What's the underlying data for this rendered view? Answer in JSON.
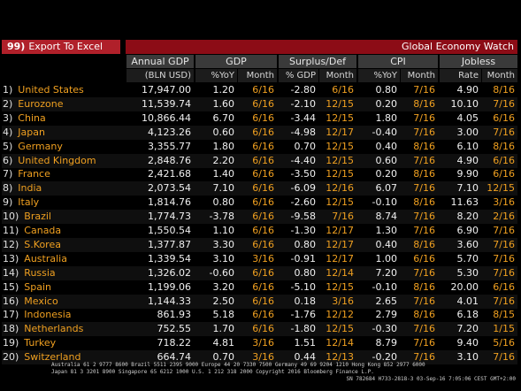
{
  "toolbar": {
    "export_number": "99)",
    "export_label": "Export To Excel",
    "title": "Global Economy Watch"
  },
  "groups": [
    "Annual GDP",
    "GDP",
    "Surplus/Def",
    "CPI",
    "Jobless"
  ],
  "subheaders": [
    "(BLN USD)",
    "%YoY",
    "Month",
    "% GDP",
    "Month",
    "%YoY",
    "Month",
    "Rate",
    "Month"
  ],
  "rows": [
    {
      "rank": "1)",
      "country": "United States",
      "gdp": "17,947.00",
      "gdp_yoy": "1.20",
      "gdp_mo": "6/16",
      "sd": "-2.80",
      "sd_mo": "6/16",
      "cpi": "0.80",
      "cpi_mo": "7/16",
      "job": "4.90",
      "job_mo": "8/16"
    },
    {
      "rank": "2)",
      "country": "Eurozone",
      "gdp": "11,539.74",
      "gdp_yoy": "1.60",
      "gdp_mo": "6/16",
      "sd": "-2.10",
      "sd_mo": "12/15",
      "cpi": "0.20",
      "cpi_mo": "8/16",
      "job": "10.10",
      "job_mo": "7/16"
    },
    {
      "rank": "3)",
      "country": "China",
      "gdp": "10,866.44",
      "gdp_yoy": "6.70",
      "gdp_mo": "6/16",
      "sd": "-3.44",
      "sd_mo": "12/15",
      "cpi": "1.80",
      "cpi_mo": "7/16",
      "job": "4.05",
      "job_mo": "6/16"
    },
    {
      "rank": "4)",
      "country": "Japan",
      "gdp": "4,123.26",
      "gdp_yoy": "0.60",
      "gdp_mo": "6/16",
      "sd": "-4.98",
      "sd_mo": "12/17",
      "cpi": "-0.40",
      "cpi_mo": "7/16",
      "job": "3.00",
      "job_mo": "7/16"
    },
    {
      "rank": "5)",
      "country": "Germany",
      "gdp": "3,355.77",
      "gdp_yoy": "1.80",
      "gdp_mo": "6/16",
      "sd": "0.70",
      "sd_mo": "12/15",
      "cpi": "0.40",
      "cpi_mo": "8/16",
      "job": "6.10",
      "job_mo": "8/16"
    },
    {
      "rank": "6)",
      "country": "United Kingdom",
      "gdp": "2,848.76",
      "gdp_yoy": "2.20",
      "gdp_mo": "6/16",
      "sd": "-4.40",
      "sd_mo": "12/15",
      "cpi": "0.60",
      "cpi_mo": "7/16",
      "job": "4.90",
      "job_mo": "6/16"
    },
    {
      "rank": "7)",
      "country": "France",
      "gdp": "2,421.68",
      "gdp_yoy": "1.40",
      "gdp_mo": "6/16",
      "sd": "-3.50",
      "sd_mo": "12/15",
      "cpi": "0.20",
      "cpi_mo": "8/16",
      "job": "9.90",
      "job_mo": "6/16"
    },
    {
      "rank": "8)",
      "country": "India",
      "gdp": "2,073.54",
      "gdp_yoy": "7.10",
      "gdp_mo": "6/16",
      "sd": "-6.09",
      "sd_mo": "12/16",
      "cpi": "6.07",
      "cpi_mo": "7/16",
      "job": "7.10",
      "job_mo": "12/15"
    },
    {
      "rank": "9)",
      "country": "Italy",
      "gdp": "1,814.76",
      "gdp_yoy": "0.80",
      "gdp_mo": "6/16",
      "sd": "-2.60",
      "sd_mo": "12/15",
      "cpi": "-0.10",
      "cpi_mo": "8/16",
      "job": "11.63",
      "job_mo": "3/16"
    },
    {
      "rank": "10)",
      "country": "Brazil",
      "gdp": "1,774.73",
      "gdp_yoy": "-3.78",
      "gdp_mo": "6/16",
      "sd": "-9.58",
      "sd_mo": "7/16",
      "cpi": "8.74",
      "cpi_mo": "7/16",
      "job": "8.20",
      "job_mo": "2/16"
    },
    {
      "rank": "11)",
      "country": "Canada",
      "gdp": "1,550.54",
      "gdp_yoy": "1.10",
      "gdp_mo": "6/16",
      "sd": "-1.30",
      "sd_mo": "12/17",
      "cpi": "1.30",
      "cpi_mo": "7/16",
      "job": "6.90",
      "job_mo": "7/16"
    },
    {
      "rank": "12)",
      "country": "S.Korea",
      "gdp": "1,377.87",
      "gdp_yoy": "3.30",
      "gdp_mo": "6/16",
      "sd": "0.80",
      "sd_mo": "12/17",
      "cpi": "0.40",
      "cpi_mo": "8/16",
      "job": "3.60",
      "job_mo": "7/16"
    },
    {
      "rank": "13)",
      "country": "Australia",
      "gdp": "1,339.54",
      "gdp_yoy": "3.10",
      "gdp_mo": "3/16",
      "sd": "-0.91",
      "sd_mo": "12/17",
      "cpi": "1.00",
      "cpi_mo": "6/16",
      "job": "5.70",
      "job_mo": "7/16"
    },
    {
      "rank": "14)",
      "country": "Russia",
      "gdp": "1,326.02",
      "gdp_yoy": "-0.60",
      "gdp_mo": "6/16",
      "sd": "0.80",
      "sd_mo": "12/14",
      "cpi": "7.20",
      "cpi_mo": "7/16",
      "job": "5.30",
      "job_mo": "7/16"
    },
    {
      "rank": "15)",
      "country": "Spain",
      "gdp": "1,199.06",
      "gdp_yoy": "3.20",
      "gdp_mo": "6/16",
      "sd": "-5.10",
      "sd_mo": "12/15",
      "cpi": "-0.10",
      "cpi_mo": "8/16",
      "job": "20.00",
      "job_mo": "6/16"
    },
    {
      "rank": "16)",
      "country": "Mexico",
      "gdp": "1,144.33",
      "gdp_yoy": "2.50",
      "gdp_mo": "6/16",
      "sd": "0.18",
      "sd_mo": "3/16",
      "cpi": "2.65",
      "cpi_mo": "7/16",
      "job": "4.01",
      "job_mo": "7/16"
    },
    {
      "rank": "17)",
      "country": "Indonesia",
      "gdp": "861.93",
      "gdp_yoy": "5.18",
      "gdp_mo": "6/16",
      "sd": "-1.76",
      "sd_mo": "12/12",
      "cpi": "2.79",
      "cpi_mo": "8/16",
      "job": "6.18",
      "job_mo": "8/15"
    },
    {
      "rank": "18)",
      "country": "Netherlands",
      "gdp": "752.55",
      "gdp_yoy": "1.70",
      "gdp_mo": "6/16",
      "sd": "-1.80",
      "sd_mo": "12/15",
      "cpi": "-0.30",
      "cpi_mo": "7/16",
      "job": "7.20",
      "job_mo": "1/15"
    },
    {
      "rank": "19)",
      "country": "Turkey",
      "gdp": "718.22",
      "gdp_yoy": "4.81",
      "gdp_mo": "3/16",
      "sd": "1.51",
      "sd_mo": "12/14",
      "cpi": "8.79",
      "cpi_mo": "7/16",
      "job": "9.40",
      "job_mo": "5/16"
    },
    {
      "rank": "20)",
      "country": "Switzerland",
      "gdp": "664.74",
      "gdp_yoy": "0.70",
      "gdp_mo": "3/16",
      "sd": "0.44",
      "sd_mo": "12/13",
      "cpi": "-0.20",
      "cpi_mo": "7/16",
      "job": "3.10",
      "job_mo": "7/16"
    }
  ],
  "footer": {
    "line1": "Australia 61 2 9777 8600 Brazil 5511 2395 9000 Europe 44 20 7330 7500 Germany 49 69 9204 1210 Hong Kong 852 2977 6000",
    "line2": "Japan 81 3 3201 8900        Singapore 65 6212 1000        U.S. 1 212 318 2000        Copyright 2016 Bloomberg Finance L.P.",
    "line3": "SN 782684 H733-2818-3 03-Sep-16  7:05:06 CEST GMT+2:00"
  }
}
